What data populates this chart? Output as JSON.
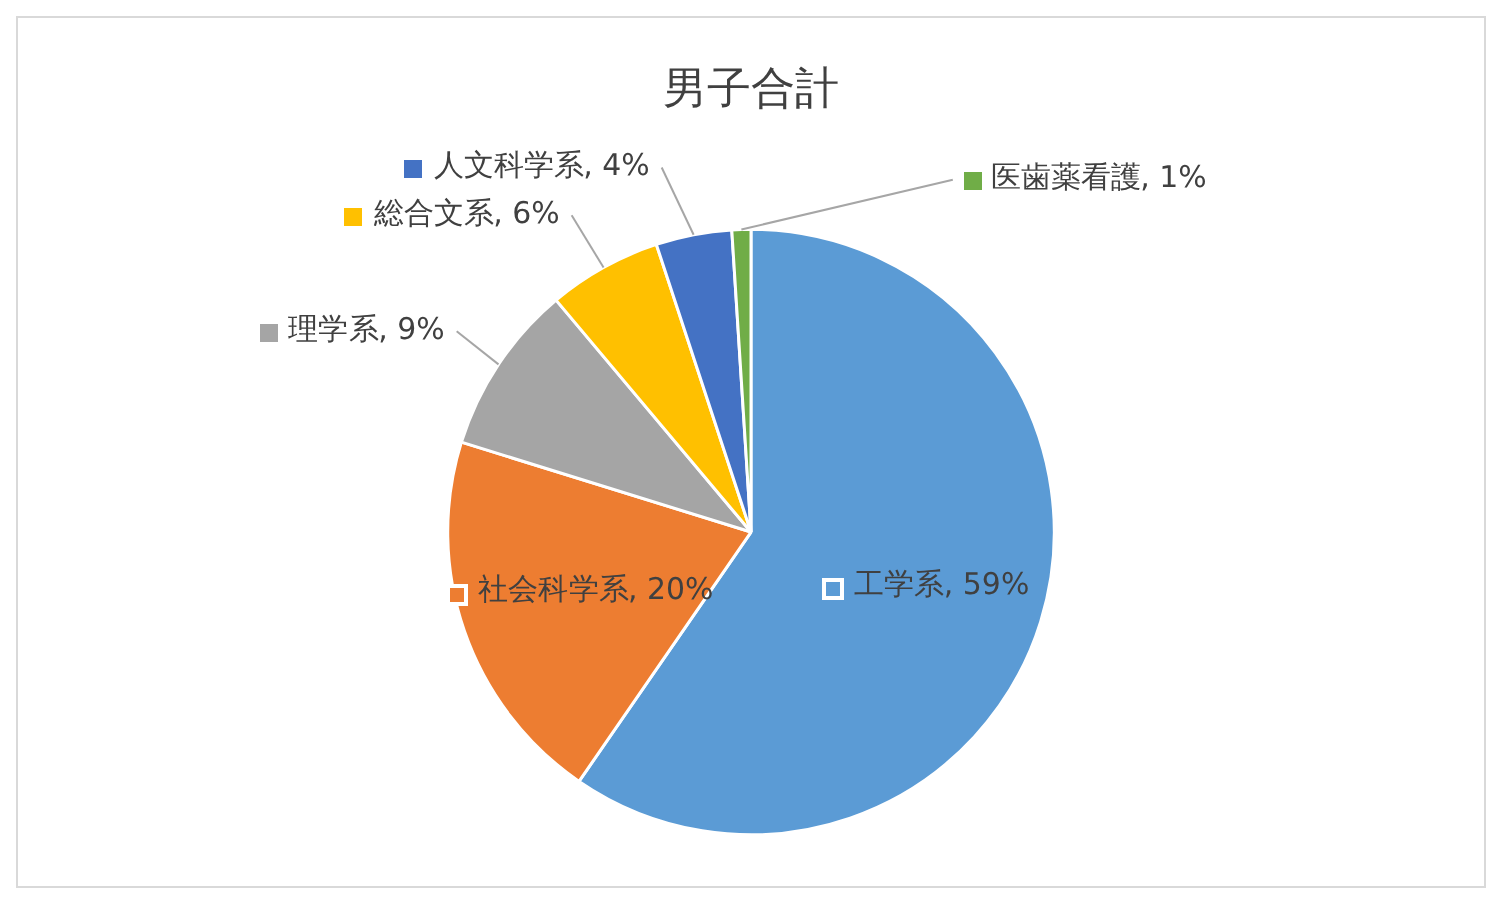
{
  "chart_data": {
    "type": "pie",
    "title": "男子合計",
    "categories": [
      "工学系",
      "社会科学系",
      "理学系",
      "総合文系",
      "人文科学系",
      "医歯薬看護"
    ],
    "values": [
      59,
      20,
      9,
      6,
      4,
      1
    ],
    "value_labels": [
      ", 59%",
      ", 20%",
      ", 9%",
      ", 6%",
      ", 4%",
      ", 1%"
    ],
    "colors": [
      "#5b9bd5",
      "#ed7d31",
      "#a5a5a5",
      "#ffc000",
      "#4472c4",
      "#70ad47"
    ],
    "legend": "top"
  }
}
